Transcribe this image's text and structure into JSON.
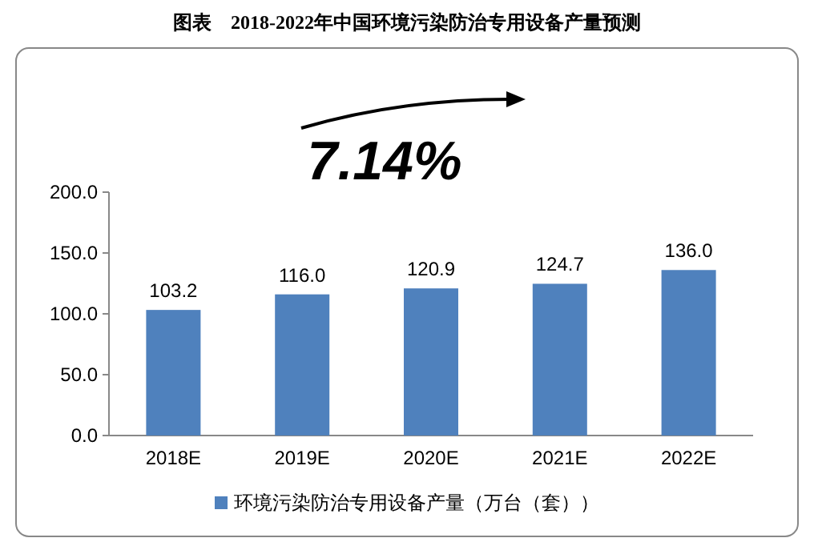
{
  "chart_data": {
    "type": "bar",
    "title": "图表　2018-2022年中国环境污染防治专用设备产量预测",
    "categories": [
      "2018E",
      "2019E",
      "2020E",
      "2021E",
      "2022E"
    ],
    "series": [
      {
        "name": "环境污染防治专用设备产量（万台（套））",
        "color": "#4f81bd",
        "values": [
          103.2,
          116.0,
          120.9,
          124.7,
          136.0
        ]
      }
    ],
    "value_labels": [
      "103.2",
      "116.0",
      "120.9",
      "124.7",
      "136.0"
    ],
    "ylim": [
      0,
      200
    ],
    "yticks": [
      {
        "value": 0,
        "label": "0.0"
      },
      {
        "value": 50,
        "label": "50.0"
      },
      {
        "value": 100,
        "label": "100.0"
      },
      {
        "value": 150,
        "label": "150.0"
      },
      {
        "value": 200,
        "label": "200.0"
      }
    ],
    "annotations": [
      "7.14%"
    ],
    "legend": "bottom"
  }
}
